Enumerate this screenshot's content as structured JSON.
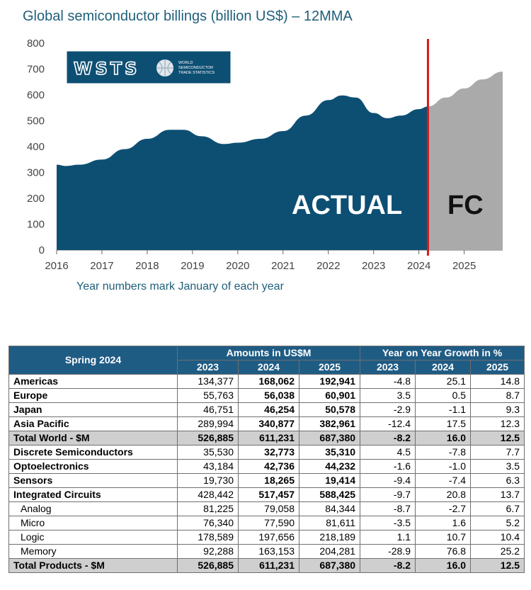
{
  "title": "Global semiconductor billings (billion US$) – 12MMA",
  "subtitle": "Year numbers mark January of each year",
  "logo": {
    "text": "WSTS",
    "tagline": [
      "WORLD",
      "SEMICONDUCTOR",
      "TRADE STATISTICS"
    ]
  },
  "chart_data": {
    "type": "area",
    "ylim": [
      0,
      800
    ],
    "yticks": [
      0,
      100,
      200,
      300,
      400,
      500,
      600,
      700,
      800
    ],
    "xticks": [
      "2016",
      "2017",
      "2018",
      "2019",
      "2020",
      "2021",
      "2022",
      "2023",
      "2024",
      "2025"
    ],
    "xlim": [
      2016,
      2025.85
    ],
    "actual_label": "ACTUAL",
    "forecast_label": "FC",
    "divider_x": 2024.2,
    "colors": {
      "actual": "#0d4f73",
      "forecast": "#aaaaaa",
      "divider": "#d9191c"
    },
    "series": [
      {
        "name": "ACTUAL",
        "x": [
          2016,
          2016.2,
          2016.5,
          2017,
          2017.5,
          2018,
          2018.5,
          2018.8,
          2019.2,
          2019.7,
          2020,
          2020.5,
          2021,
          2021.5,
          2022,
          2022.3,
          2022.6,
          2023,
          2023.3,
          2023.6,
          2024,
          2024.2
        ],
        "values": [
          330,
          325,
          330,
          350,
          390,
          430,
          465,
          465,
          440,
          410,
          415,
          430,
          460,
          520,
          580,
          598,
          590,
          530,
          510,
          520,
          545,
          555
        ]
      },
      {
        "name": "FC",
        "x": [
          2024.2,
          2024.6,
          2025,
          2025.4,
          2025.85
        ],
        "values": [
          555,
          590,
          625,
          660,
          690
        ]
      }
    ]
  },
  "table": {
    "corner": "Spring 2024",
    "group_amounts": "Amounts in US$M",
    "group_growth": "Year on Year Growth in %",
    "years": [
      "2023",
      "2024",
      "2025"
    ],
    "rows": [
      {
        "label": "Americas",
        "style": "lbl",
        "amounts": [
          "134,377",
          "168,062",
          "192,941"
        ],
        "growth": [
          "-4.8",
          "25.1",
          "14.8"
        ]
      },
      {
        "label": "Europe",
        "style": "lbl",
        "amounts": [
          "55,763",
          "56,038",
          "60,901"
        ],
        "growth": [
          "3.5",
          "0.5",
          "8.7"
        ]
      },
      {
        "label": "Japan",
        "style": "lbl",
        "amounts": [
          "46,751",
          "46,254",
          "50,578"
        ],
        "growth": [
          "-2.9",
          "-1.1",
          "9.3"
        ]
      },
      {
        "label": "Asia Pacific",
        "style": "lbl",
        "amounts": [
          "289,994",
          "340,877",
          "382,961"
        ],
        "growth": [
          "-12.4",
          "17.5",
          "12.3"
        ]
      },
      {
        "label": "Total World - $M",
        "style": "total",
        "amounts": [
          "526,885",
          "611,231",
          "687,380"
        ],
        "growth": [
          "-8.2",
          "16.0",
          "12.5"
        ]
      },
      {
        "label": "Discrete Semiconductors",
        "style": "lbl",
        "amounts": [
          "35,530",
          "32,773",
          "35,310"
        ],
        "growth": [
          "4.5",
          "-7.8",
          "7.7"
        ]
      },
      {
        "label": "Optoelectronics",
        "style": "lbl",
        "amounts": [
          "43,184",
          "42,736",
          "44,232"
        ],
        "growth": [
          "-1.6",
          "-1.0",
          "3.5"
        ]
      },
      {
        "label": "Sensors",
        "style": "lbl",
        "amounts": [
          "19,730",
          "18,265",
          "19,414"
        ],
        "growth": [
          "-9.4",
          "-7.4",
          "6.3"
        ]
      },
      {
        "label": "Integrated Circuits",
        "style": "lbl",
        "amounts": [
          "428,442",
          "517,457",
          "588,425"
        ],
        "growth": [
          "-9.7",
          "20.8",
          "13.7"
        ]
      },
      {
        "label": "Analog",
        "style": "sub",
        "amounts": [
          "81,225",
          "79,058",
          "84,344"
        ],
        "growth": [
          "-8.7",
          "-2.7",
          "6.7"
        ]
      },
      {
        "label": "Micro",
        "style": "sub",
        "amounts": [
          "76,340",
          "77,590",
          "81,611"
        ],
        "growth": [
          "-3.5",
          "1.6",
          "5.2"
        ]
      },
      {
        "label": "Logic",
        "style": "sub",
        "amounts": [
          "178,589",
          "197,656",
          "218,189"
        ],
        "growth": [
          "1.1",
          "10.7",
          "10.4"
        ]
      },
      {
        "label": "Memory",
        "style": "sub",
        "amounts": [
          "92,288",
          "163,153",
          "204,281"
        ],
        "growth": [
          "-28.9",
          "76.8",
          "25.2"
        ]
      },
      {
        "label": "Total Products - $M",
        "style": "total",
        "amounts": [
          "526,885",
          "611,231",
          "687,380"
        ],
        "growth": [
          "-8.2",
          "16.0",
          "12.5"
        ]
      }
    ]
  }
}
